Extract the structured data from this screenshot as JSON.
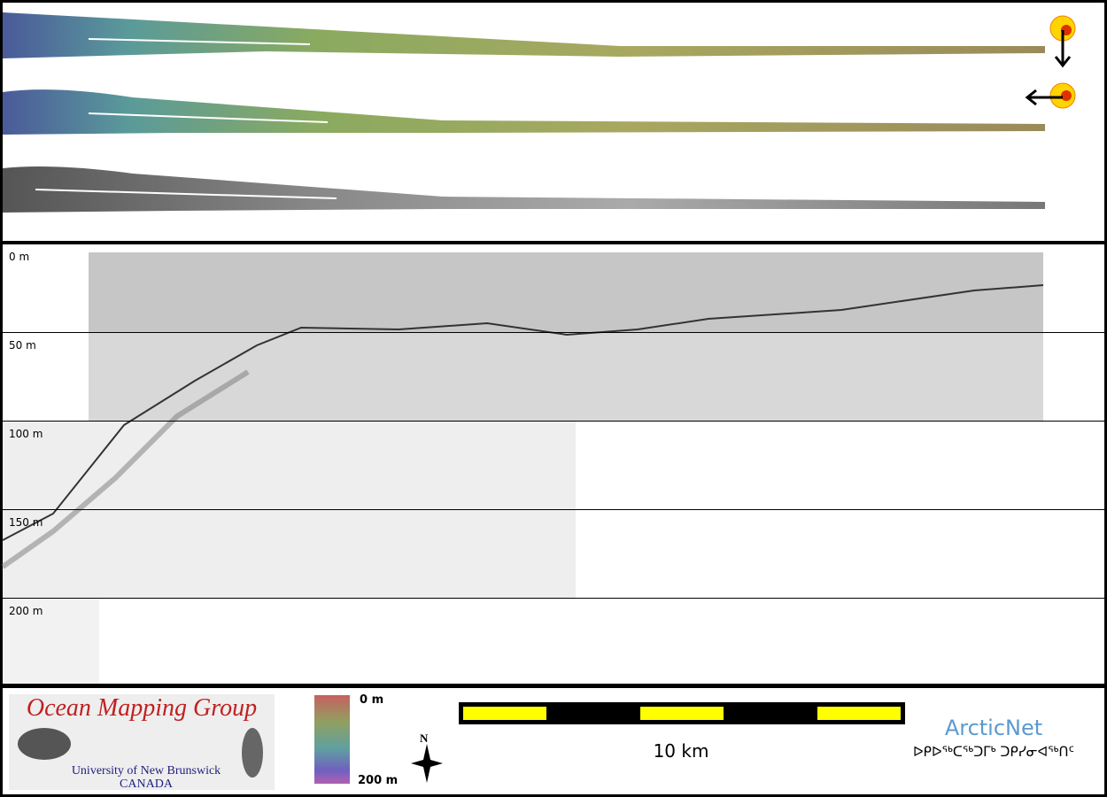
{
  "profile": {
    "depth_labels": [
      "0 m",
      "50 m",
      "100 m",
      "150 m",
      "200 m"
    ]
  },
  "footer": {
    "logo": {
      "title": "Ocean Mapping Group",
      "line1": "University of New Brunswick",
      "line2": "CANADA"
    },
    "color_scale": {
      "top": "0 m",
      "bottom": "200 m"
    },
    "compass": "N",
    "scale_bar": "10 km",
    "arcticnet": {
      "name": "ArcticNet",
      "syllabics": "ᐅᑭᐅᖅᑕᖅᑐᒥᒃ ᑐᑭᓯᓂᐊᖅᑎᑦ"
    }
  }
}
